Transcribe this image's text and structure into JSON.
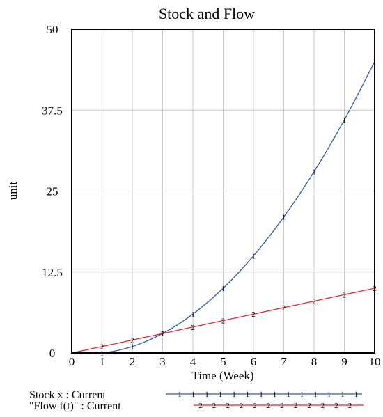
{
  "chart_data": {
    "type": "line",
    "title": "Stock and Flow",
    "xlabel": "Time (Week)",
    "ylabel": "unit",
    "xlim": [
      0,
      10
    ],
    "ylim": [
      0,
      50
    ],
    "x_ticks": [
      0,
      1,
      2,
      3,
      4,
      5,
      6,
      7,
      8,
      9,
      10
    ],
    "y_ticks": [
      0,
      12.5,
      25,
      37.5,
      50
    ],
    "x_tick_labels": [
      "0",
      "1",
      "2",
      "3",
      "4",
      "5",
      "6",
      "7",
      "8",
      "9",
      "10"
    ],
    "y_tick_labels": [
      "0",
      "12.5",
      "25",
      "37.5",
      "50"
    ],
    "grid": true,
    "legend_position": "bottom",
    "series": [
      {
        "name": "Stock x : Current",
        "marker": "1",
        "color": "#2b5fa6",
        "x": [
          0,
          1,
          2,
          3,
          4,
          5,
          6,
          7,
          8,
          9,
          10
        ],
        "y": [
          0,
          0,
          1,
          3,
          6,
          10,
          15,
          21,
          28,
          36,
          45
        ]
      },
      {
        "name": "\"Flow f(t)\" : Current",
        "marker": "2",
        "color": "#e8262b",
        "x": [
          0,
          1,
          2,
          3,
          4,
          5,
          6,
          7,
          8,
          9,
          10
        ],
        "y": [
          0,
          1,
          2,
          3,
          4,
          5,
          6,
          7,
          8,
          9,
          10
        ]
      }
    ]
  }
}
